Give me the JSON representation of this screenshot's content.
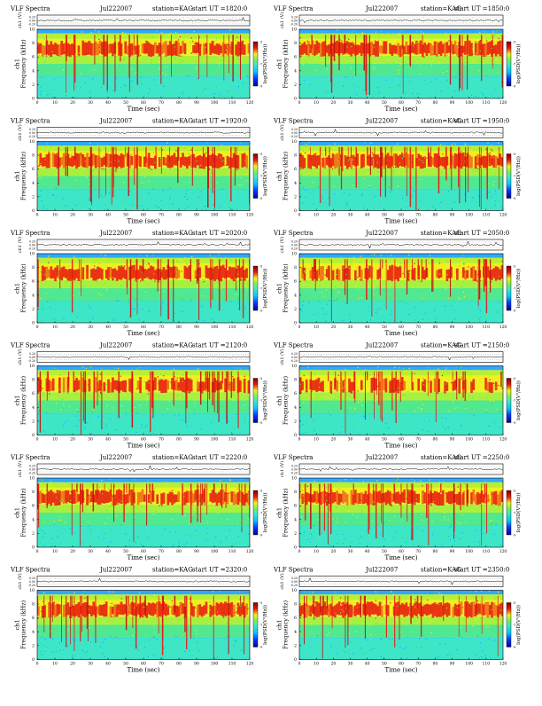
{
  "header_label": "VLF Spectra",
  "station_label": "station=KAG",
  "start_label": "start",
  "ut_label": "UT =",
  "wave_ylabel": "ch1 (V)",
  "wave_ticks": [
    "0.20",
    "0.00",
    "-0.20"
  ],
  "freq_ylabel": "ch1\nFrequency (kHz)",
  "xlabel": "Time (sec)",
  "colorbar_label": "log(PSD(V²/Hz))",
  "colorbar_ticks": [
    "-9",
    "-7",
    "-5"
  ],
  "chart_data": {
    "type": "heatmap",
    "x_ticks": [
      0,
      10,
      20,
      30,
      40,
      50,
      60,
      70,
      80,
      90,
      100,
      110,
      120
    ],
    "y_ticks": [
      0,
      2,
      4,
      6,
      8,
      10
    ],
    "xlim": [
      0,
      120
    ],
    "ylim": [
      0,
      10
    ],
    "panels": [
      {
        "date": "Jul222007",
        "start_ut": "1820:0",
        "column": "left"
      },
      {
        "date": "Jul222007",
        "start_ut": "1850:0",
        "column": "right"
      },
      {
        "date": "Jul222007",
        "start_ut": "1920:0",
        "column": "left"
      },
      {
        "date": "Jul222007",
        "start_ut": "1950:0",
        "column": "right"
      },
      {
        "date": "Jul222007",
        "start_ut": "2020:0",
        "column": "left"
      },
      {
        "date": "Jul222007",
        "start_ut": "2050:0",
        "column": "right"
      },
      {
        "date": "Jul222007",
        "start_ut": "2120:0",
        "column": "left"
      },
      {
        "date": "Jul222007",
        "start_ut": "2150:0",
        "column": "right"
      },
      {
        "date": "Jul222007",
        "start_ut": "2220:0",
        "column": "left"
      },
      {
        "date": "Jul222007",
        "start_ut": "2250:0",
        "column": "right"
      },
      {
        "date": "Jul222007",
        "start_ut": "2320:0",
        "column": "left"
      },
      {
        "date": "Jul222007",
        "start_ut": "2350:0",
        "column": "right"
      }
    ]
  },
  "colors": {
    "background": "#ffffff",
    "low": "#0000a0",
    "lowmid": "#00c8ff",
    "mid": "#3ee6c8",
    "midhigh": "#f0f020",
    "high": "#e81810",
    "peak": "#800000"
  }
}
